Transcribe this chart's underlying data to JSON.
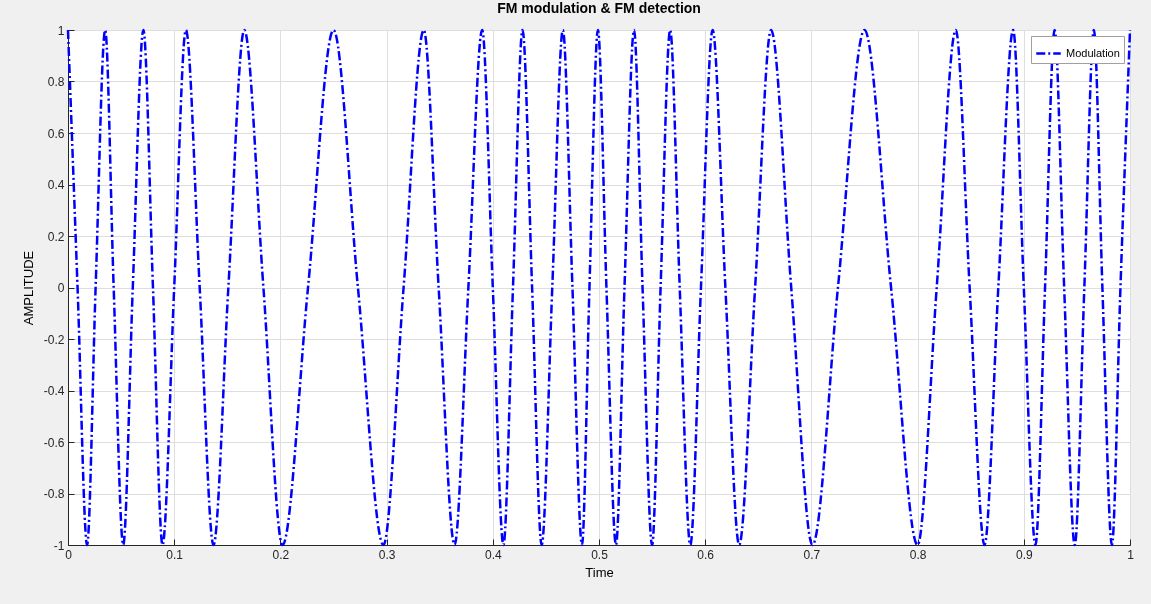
{
  "chart_data": {
    "type": "line",
    "title": "FM modulation & FM detection",
    "xlabel": "Time",
    "ylabel": "AMPLITUDE",
    "x": [
      0,
      0.009,
      0.018,
      0.026,
      0.035,
      0.043,
      0.052,
      0.061,
      0.071,
      0.08,
      0.089,
      0.1,
      0.111,
      0.124,
      0.137,
      0.151,
      0.166,
      0.184,
      0.202,
      0.226,
      0.25,
      0.273,
      0.297,
      0.316,
      0.335,
      0.349,
      0.364,
      0.377,
      0.39,
      0.4,
      0.41,
      0.419,
      0.428,
      0.437,
      0.446,
      0.456,
      0.466,
      0.475,
      0.484,
      0.491,
      0.499,
      0.507,
      0.516,
      0.524,
      0.533,
      0.541,
      0.55,
      0.558,
      0.567,
      0.576,
      0.586,
      0.596,
      0.607,
      0.619,
      0.632,
      0.647,
      0.662,
      0.681,
      0.701,
      0.725,
      0.75,
      0.775,
      0.8,
      0.818,
      0.836,
      0.849,
      0.863,
      0.876,
      0.89,
      0.9,
      0.911,
      0.92,
      0.929,
      0.938,
      0.948,
      0.957,
      0.966,
      0.974,
      0.983,
      0.991,
      1
    ],
    "series": [
      {
        "name": "Modulation",
        "color": "#0000ff",
        "values": [
          1,
          0,
          -1,
          0,
          1,
          0,
          -1,
          0,
          1,
          0,
          -1,
          0,
          1,
          0,
          -1,
          0,
          1,
          0,
          -1,
          0,
          1,
          0,
          -1,
          0,
          1,
          0,
          -1,
          0,
          1,
          0,
          -1,
          0,
          1,
          0,
          -1,
          0,
          1,
          0,
          -1,
          0,
          1,
          0,
          -1,
          0,
          1,
          0,
          -1,
          0,
          1,
          0,
          -1,
          0,
          1,
          0,
          -1,
          0,
          1,
          0,
          -1,
          0,
          1,
          0,
          -1,
          0,
          1,
          0,
          -1,
          0,
          1,
          0,
          -1,
          0,
          1,
          0,
          -1,
          0,
          1,
          0,
          -1,
          0,
          1
        ]
      }
    ],
    "xlim": [
      0,
      1
    ],
    "ylim": [
      -1,
      1
    ],
    "xticks": [
      0,
      0.1,
      0.2,
      0.3,
      0.4,
      0.5,
      0.6,
      0.7,
      0.8,
      0.9,
      1
    ],
    "yticks": [
      -1,
      -0.8,
      -0.6,
      -0.4,
      -0.2,
      0,
      0.2,
      0.4,
      0.6,
      0.8,
      1
    ],
    "grid": true,
    "legend": "top right",
    "line_style": "dashed",
    "marker": "none"
  }
}
